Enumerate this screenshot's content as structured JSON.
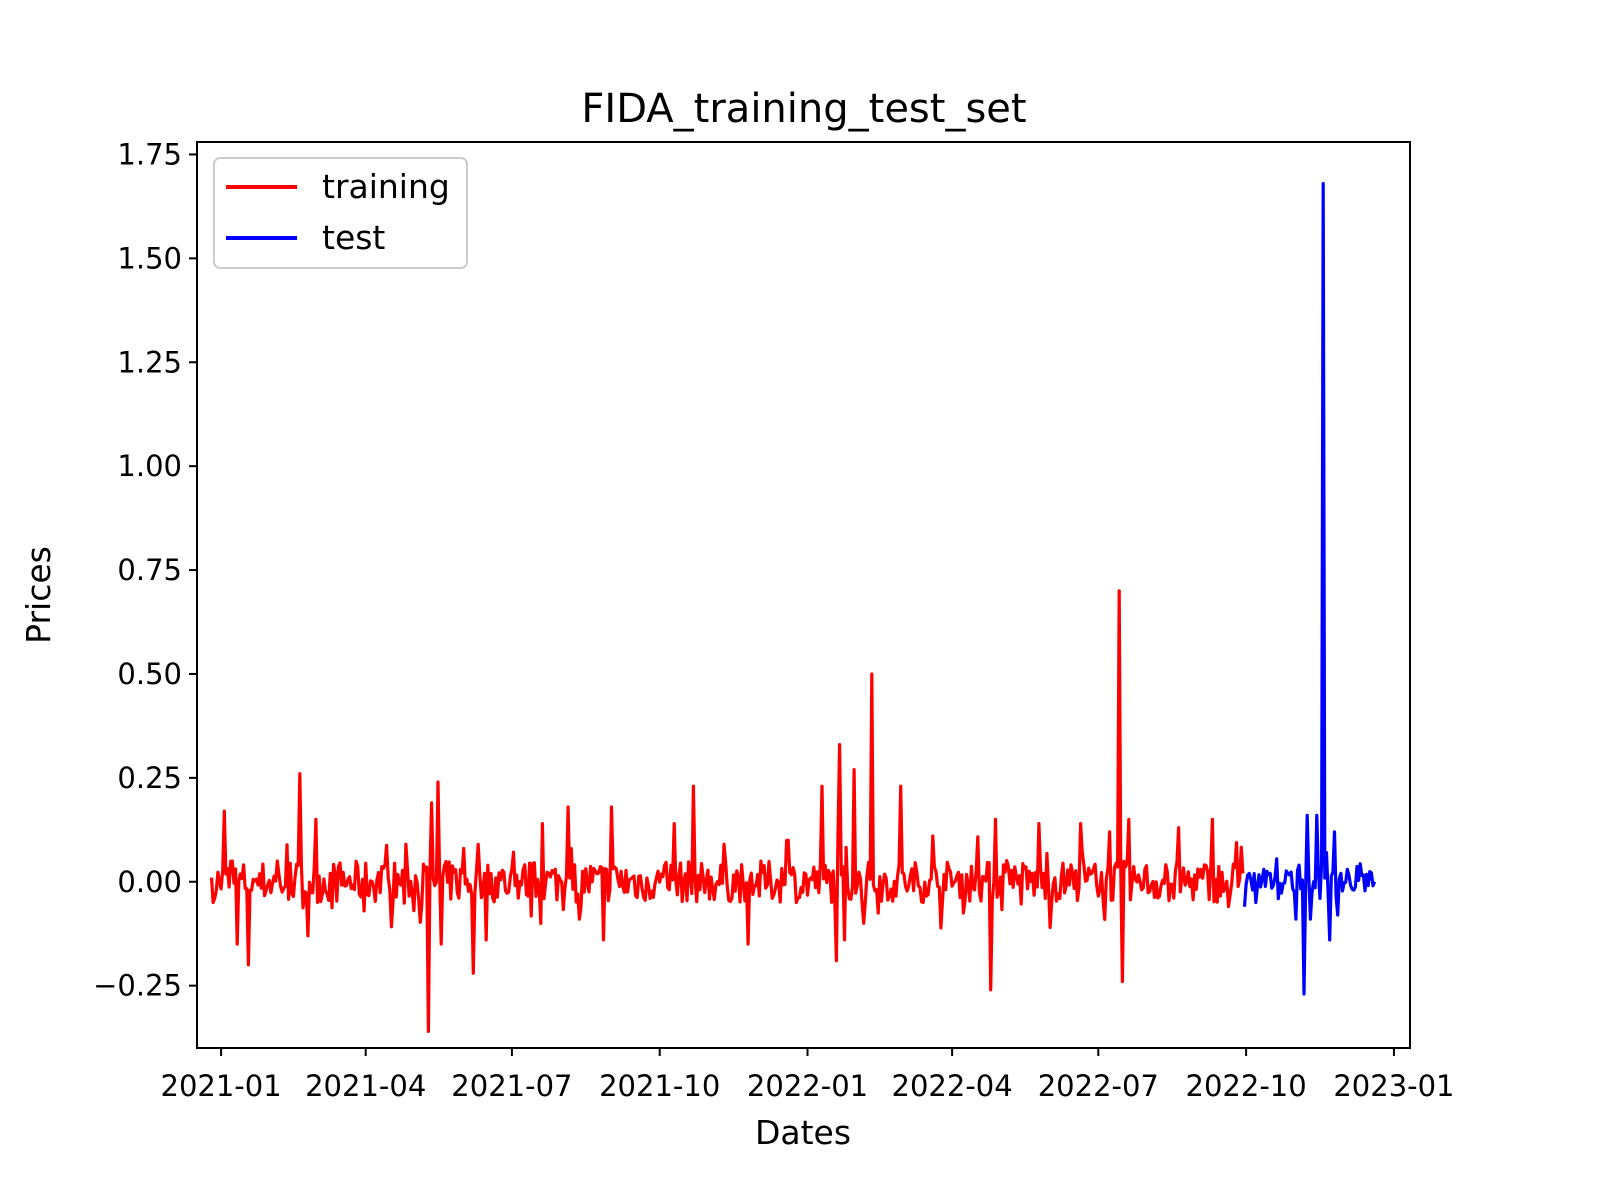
{
  "chart_data": {
    "type": "line",
    "title": "FIDA_training_test_set",
    "xlabel": "Dates",
    "ylabel": "Prices",
    "xlim": [
      "2020-12-17",
      "2023-01-11"
    ],
    "ylim": [
      -0.4,
      1.78
    ],
    "x_ticks": [
      "2021-01",
      "2021-04",
      "2021-07",
      "2021-10",
      "2022-01",
      "2022-04",
      "2022-07",
      "2022-10",
      "2023-01"
    ],
    "y_ticks": [
      -0.25,
      0.0,
      0.25,
      0.5,
      0.75,
      1.0,
      1.25,
      1.5,
      1.75
    ],
    "y_tick_labels": [
      "−0.25",
      "0.00",
      "0.25",
      "0.50",
      "0.75",
      "1.00",
      "1.25",
      "1.50",
      "1.75"
    ],
    "grid": false,
    "legend": {
      "position": "upper-left"
    },
    "series": [
      {
        "name": "training",
        "color": "#ff0000",
        "x_start": "2020-12-26",
        "x_end": "2022-09-29",
        "step_days": 1,
        "anchors": [
          [
            "2020-12-26",
            0.01
          ],
          [
            "2020-12-28",
            -0.04
          ],
          [
            "2020-12-31",
            0.0
          ],
          [
            "2021-01-03",
            0.17
          ],
          [
            "2021-01-08",
            0.05
          ],
          [
            "2021-01-11",
            -0.15
          ],
          [
            "2021-01-18",
            -0.2
          ],
          [
            "2021-02-05",
            0.05
          ],
          [
            "2021-02-19",
            0.26
          ],
          [
            "2021-02-24",
            -0.13
          ],
          [
            "2021-03-01",
            0.15
          ],
          [
            "2021-03-31",
            -0.07
          ],
          [
            "2021-04-26",
            0.09
          ],
          [
            "2021-05-10",
            -0.36
          ],
          [
            "2021-05-12",
            0.19
          ],
          [
            "2021-05-16",
            0.24
          ],
          [
            "2021-05-18",
            -0.15
          ],
          [
            "2021-06-01",
            0.08
          ],
          [
            "2021-06-07",
            -0.22
          ],
          [
            "2021-06-10",
            0.09
          ],
          [
            "2021-06-15",
            -0.14
          ],
          [
            "2021-07-20",
            0.14
          ],
          [
            "2021-08-05",
            0.18
          ],
          [
            "2021-08-12",
            -0.09
          ],
          [
            "2021-08-27",
            -0.14
          ],
          [
            "2021-09-01",
            0.18
          ],
          [
            "2021-10-10",
            0.14
          ],
          [
            "2021-10-22",
            0.23
          ],
          [
            "2021-11-10",
            0.09
          ],
          [
            "2021-11-25",
            -0.15
          ],
          [
            "2021-12-20",
            0.1
          ],
          [
            "2022-01-10",
            0.23
          ],
          [
            "2022-01-19",
            -0.19
          ],
          [
            "2022-01-21",
            0.33
          ],
          [
            "2022-01-24",
            -0.14
          ],
          [
            "2022-01-30",
            0.27
          ],
          [
            "2022-02-05",
            -0.1
          ],
          [
            "2022-02-10",
            0.5
          ],
          [
            "2022-02-28",
            0.23
          ],
          [
            "2022-03-20",
            0.11
          ],
          [
            "2022-04-25",
            -0.26
          ],
          [
            "2022-04-28",
            0.15
          ],
          [
            "2022-05-25",
            0.14
          ],
          [
            "2022-06-01",
            -0.11
          ],
          [
            "2022-06-20",
            0.14
          ],
          [
            "2022-07-08",
            0.12
          ],
          [
            "2022-07-14",
            0.7
          ],
          [
            "2022-07-16",
            -0.24
          ],
          [
            "2022-07-20",
            0.15
          ],
          [
            "2022-08-20",
            0.13
          ],
          [
            "2022-09-10",
            0.15
          ],
          [
            "2022-09-20",
            -0.06
          ],
          [
            "2022-09-29",
            0.02
          ]
        ]
      },
      {
        "name": "test",
        "color": "#0000ff",
        "x_start": "2022-09-30",
        "x_end": "2022-12-20",
        "step_days": 1,
        "anchors": [
          [
            "2022-09-30",
            -0.06
          ],
          [
            "2022-10-03",
            0.02
          ],
          [
            "2022-10-07",
            -0.05
          ],
          [
            "2022-10-12",
            0.03
          ],
          [
            "2022-10-19",
            0.01
          ],
          [
            "2022-10-27",
            0.02
          ],
          [
            "2022-11-01",
            -0.09
          ],
          [
            "2022-11-03",
            0.04
          ],
          [
            "2022-11-06",
            -0.27
          ],
          [
            "2022-11-08",
            0.16
          ],
          [
            "2022-11-10",
            -0.09
          ],
          [
            "2022-11-12",
            0.0
          ],
          [
            "2022-11-14",
            0.16
          ],
          [
            "2022-11-16",
            -0.04
          ],
          [
            "2022-11-18",
            1.68
          ],
          [
            "2022-11-20",
            0.07
          ],
          [
            "2022-11-22",
            -0.14
          ],
          [
            "2022-11-25",
            0.12
          ],
          [
            "2022-11-27",
            -0.08
          ],
          [
            "2022-11-29",
            0.02
          ],
          [
            "2022-12-03",
            0.03
          ],
          [
            "2022-12-07",
            -0.02
          ],
          [
            "2022-12-20",
            0.0
          ]
        ]
      }
    ]
  }
}
